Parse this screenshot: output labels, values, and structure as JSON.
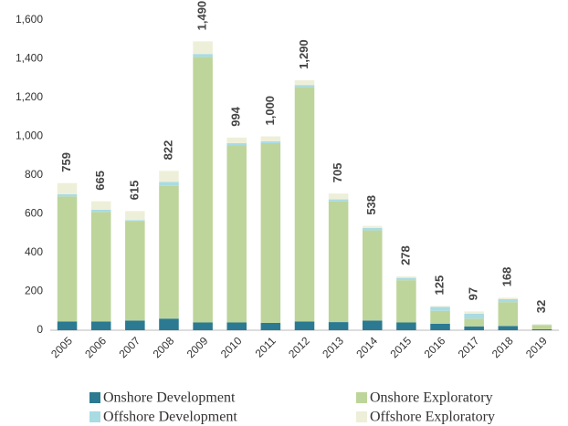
{
  "chart_data": {
    "type": "stacked_bar",
    "categories": [
      "2005",
      "2006",
      "2007",
      "2008",
      "2009",
      "2010",
      "2011",
      "2012",
      "2013",
      "2014",
      "2015",
      "2016",
      "2017",
      "2018",
      "2019"
    ],
    "series": [
      {
        "name": "Onshore Development",
        "color": "#2b7a92",
        "values": [
          45,
          45,
          50,
          60,
          40,
          40,
          38,
          45,
          42,
          50,
          40,
          33,
          20,
          22,
          5
        ]
      },
      {
        "name": "Onshore Exploratory",
        "color": "#bdd59a",
        "values": [
          645,
          565,
          510,
          685,
          1370,
          915,
          927,
          1210,
          623,
          465,
          218,
          67,
          40,
          123,
          20
        ]
      },
      {
        "name": "Offshore Development",
        "color": "#a9dbe3",
        "values": [
          12,
          12,
          8,
          20,
          15,
          10,
          10,
          10,
          10,
          12,
          12,
          20,
          25,
          15,
          3
        ]
      },
      {
        "name": "Offshore Exploratory",
        "color": "#eeefd9",
        "values": [
          57,
          43,
          47,
          57,
          65,
          29,
          25,
          25,
          30,
          11,
          8,
          5,
          12,
          8,
          4
        ]
      }
    ],
    "totals": [
      759,
      665,
      615,
      822,
      1490,
      994,
      1000,
      1290,
      705,
      538,
      278,
      125,
      97,
      168,
      32
    ],
    "totals_value_labels": [
      "759",
      "665",
      "615",
      "822",
      "1,490",
      "994",
      "1,000",
      "1,290",
      "705",
      "538",
      "278",
      "125",
      "97",
      "168",
      "32"
    ],
    "ylim": [
      0,
      1600
    ],
    "yticks": [
      0,
      200,
      400,
      600,
      800,
      {
        "value": 1000,
        "label": "1,000"
      },
      {
        "value": 1200,
        "label": "1,200"
      },
      {
        "value": 1400,
        "label": "1,400"
      },
      {
        "value": 1600,
        "label": "1,600"
      }
    ],
    "grid": false
  }
}
